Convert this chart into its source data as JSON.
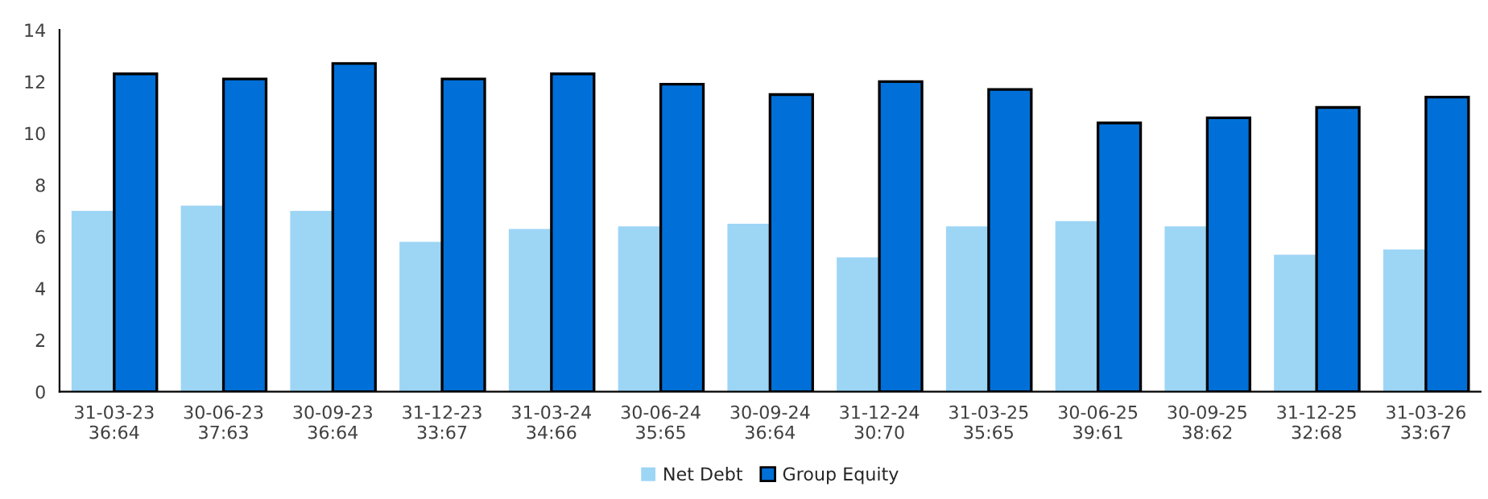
{
  "chart_data": {
    "type": "bar",
    "categories": [
      "31-03-23\n36:64",
      "30-06-23\n37:63",
      "30-09-23\n36:64",
      "31-12-23\n33:67",
      "31-03-24\n34:66",
      "30-06-24\n35:65",
      "30-09-24\n36:64",
      "31-12-24\n30:70",
      "31-03-25\n35:65",
      "30-06-25\n39:61",
      "30-09-25\n38:62",
      "31-12-25\n32:68",
      "31-03-26\n33:67"
    ],
    "series": [
      {
        "name": "Net Debt",
        "color": "#9dd5f5",
        "values": [
          7.0,
          7.2,
          7.0,
          5.8,
          6.3,
          6.4,
          6.5,
          5.2,
          6.4,
          6.6,
          6.4,
          5.3,
          5.5
        ]
      },
      {
        "name": "Group Equity",
        "color": "#0070d8",
        "values": [
          12.3,
          12.1,
          12.7,
          12.1,
          12.3,
          11.9,
          11.5,
          12.0,
          11.7,
          10.4,
          10.6,
          11.0,
          11.4
        ]
      }
    ],
    "ylim": [
      0,
      14
    ],
    "yticks": [
      0,
      2,
      4,
      6,
      8,
      10,
      12,
      14
    ],
    "grid": false,
    "legend": "bottom"
  }
}
